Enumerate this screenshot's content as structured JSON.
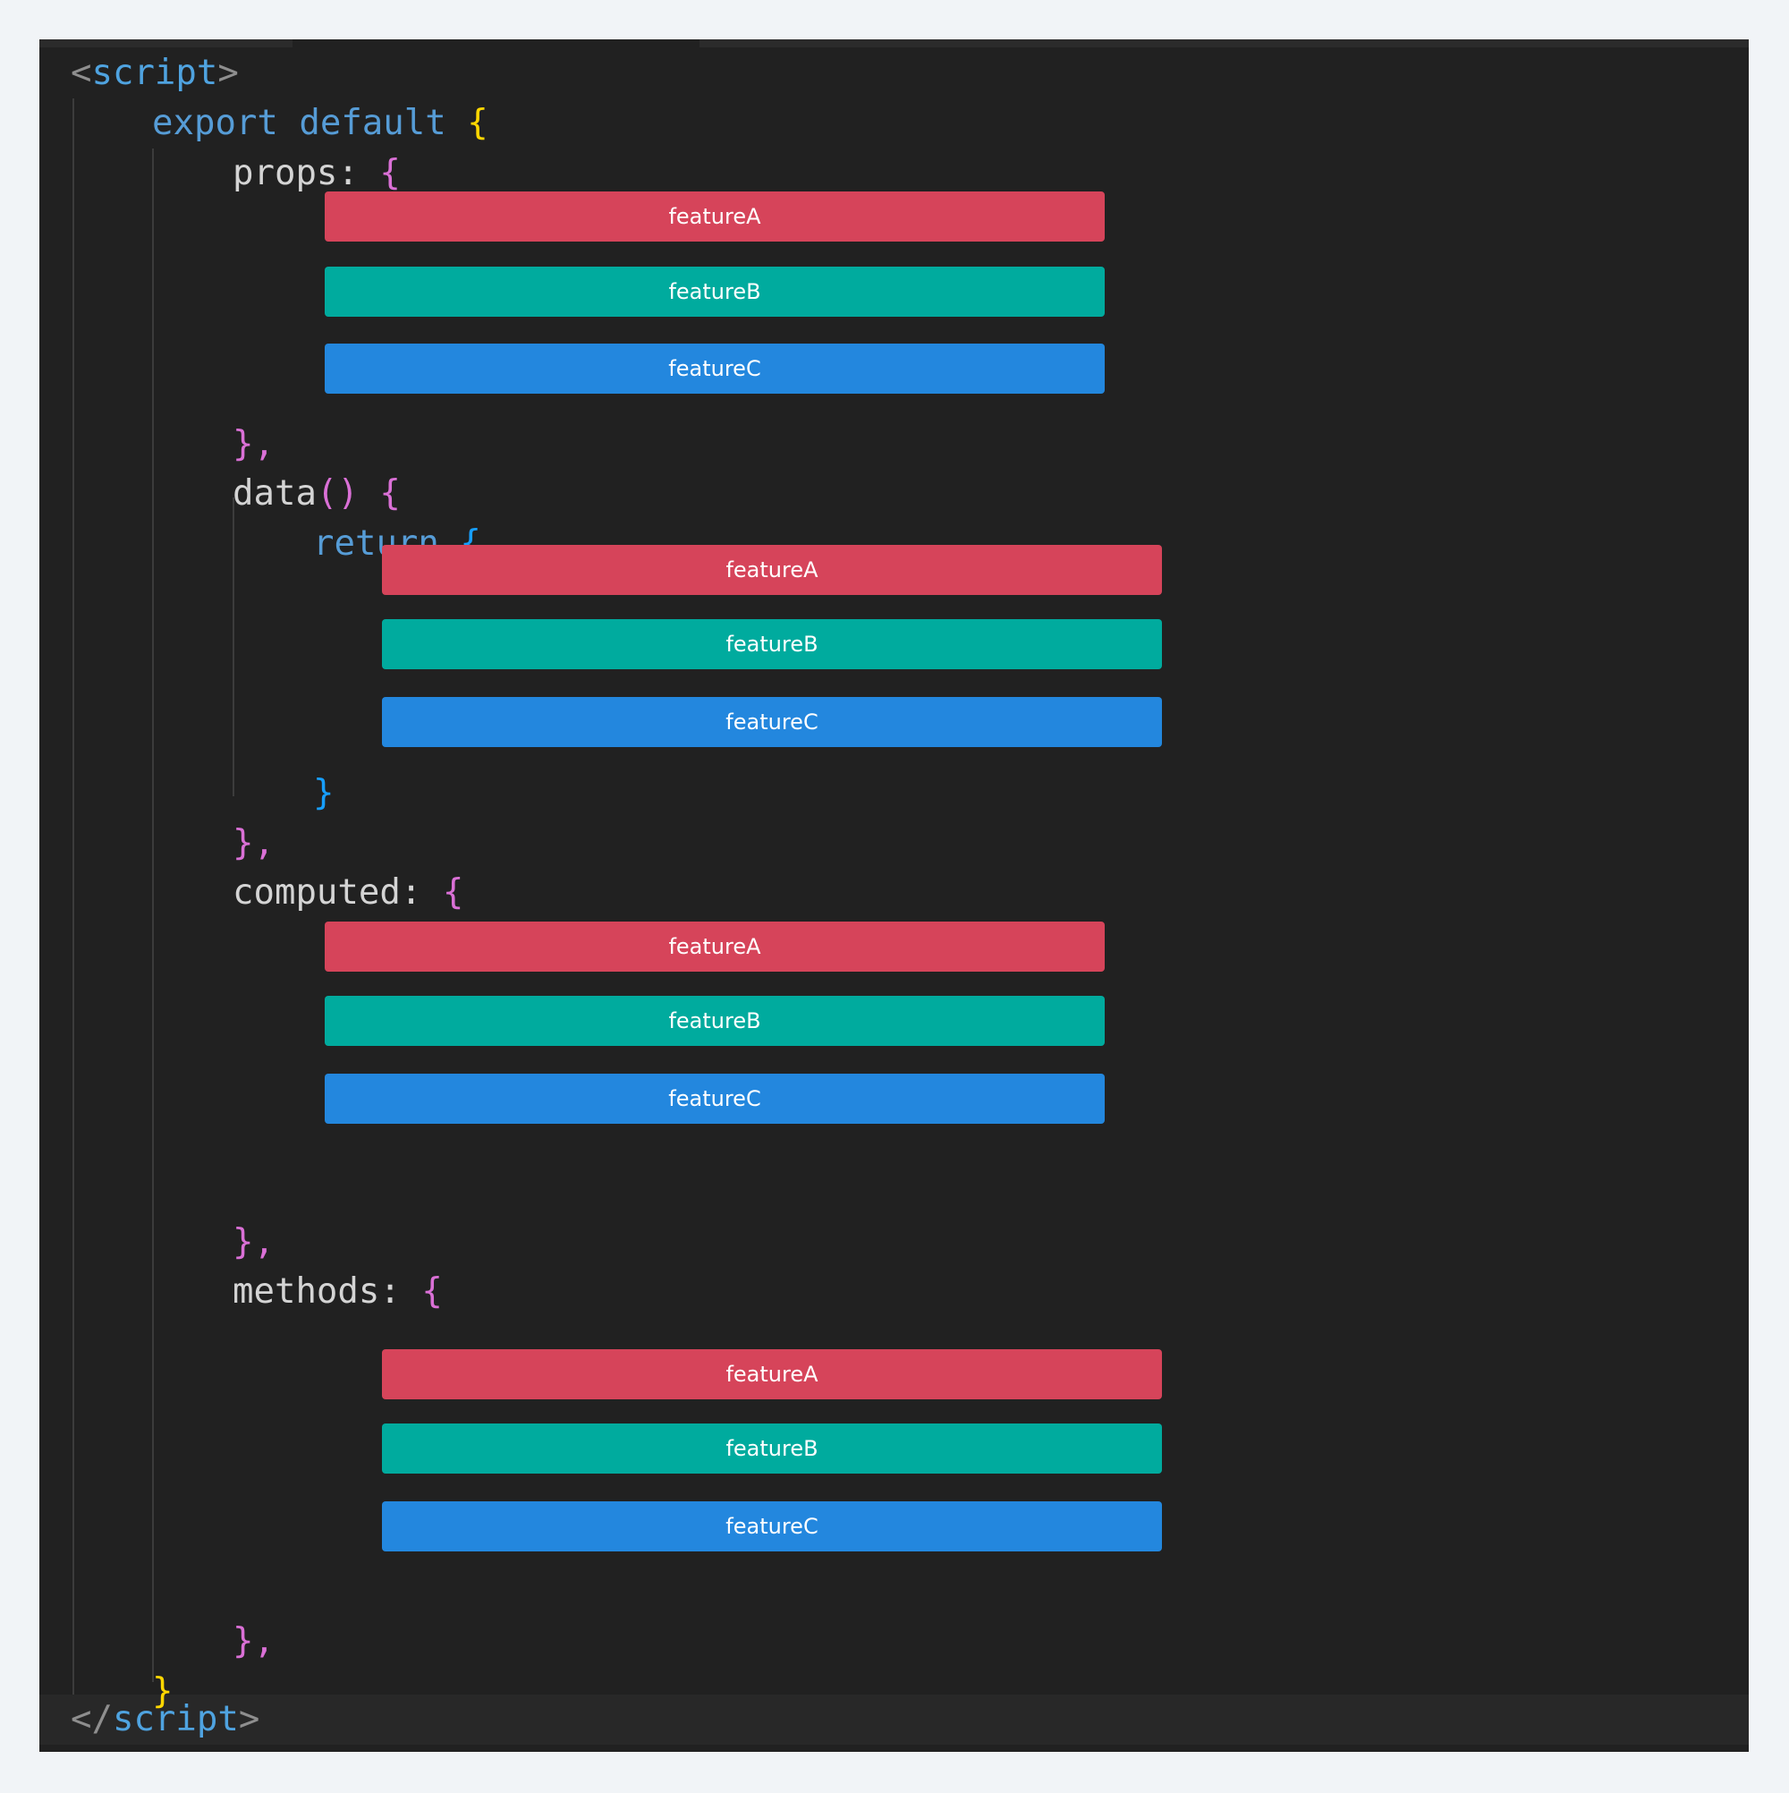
{
  "colors": {
    "page_bg": "#f1f4f7",
    "editor_bg": "#212121",
    "feature_a": "#d6445a",
    "feature_b": "#00ab9e",
    "feature_c": "#2387de"
  },
  "code": {
    "open_tag": {
      "lt": "<",
      "name": "script",
      "gt": ">"
    },
    "export_line": {
      "kw": "export default",
      "brace": "{"
    },
    "props_line": {
      "key": "props:",
      "brace": "{"
    },
    "props_close": "},",
    "data_line": {
      "key": "data",
      "parens": "()",
      "brace": "{"
    },
    "return_line": {
      "kw": "return",
      "brace": "{"
    },
    "return_close": "}",
    "data_close": "},",
    "computed_line": {
      "key": "computed:",
      "brace": "{"
    },
    "computed_close": "},",
    "methods_line": {
      "key": "methods:",
      "brace": "{"
    },
    "methods_close": "},",
    "export_close": "}",
    "close_tag": {
      "lt": "</",
      "name": "script",
      "gt": ">"
    }
  },
  "sections": [
    {
      "name": "props",
      "features": [
        "featureA",
        "featureB",
        "featureC"
      ]
    },
    {
      "name": "data",
      "features": [
        "featureA",
        "featureB",
        "featureC"
      ]
    },
    {
      "name": "computed",
      "features": [
        "featureA",
        "featureB",
        "featureC"
      ]
    },
    {
      "name": "methods",
      "features": [
        "featureA",
        "featureB",
        "featureC"
      ]
    }
  ]
}
